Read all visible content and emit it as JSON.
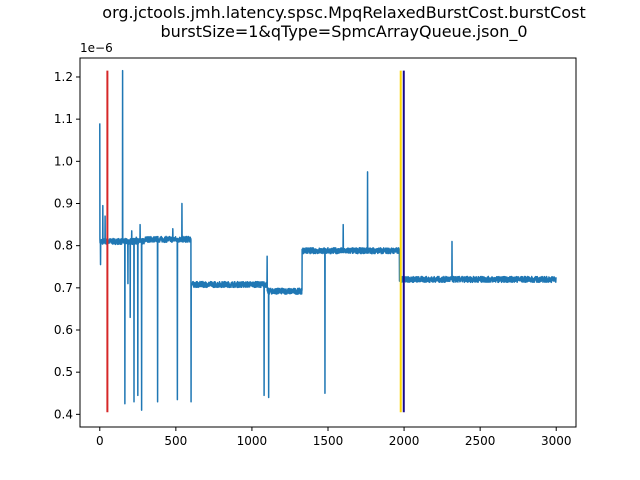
{
  "chart_data": {
    "type": "line",
    "title": "org.jctools.jmh.latency.spsc.MpqRelaxedBurstCost.burstCost",
    "subtitle": "burstSize=1&qType=SpmcArrayQueue.json_0",
    "xlabel": "",
    "ylabel": "",
    "y_offset_label": "1e−6",
    "xlim": [
      -130,
      3130
    ],
    "ylim": [
      3.7e-07,
      1.245e-06
    ],
    "x_ticks": [
      0,
      500,
      1000,
      1500,
      2000,
      2500,
      3000
    ],
    "x_tick_labels": [
      "0",
      "500",
      "1000",
      "1500",
      "2000",
      "2500",
      "3000"
    ],
    "y_ticks": [
      4e-07,
      5e-07,
      6e-07,
      7e-07,
      8e-07,
      9e-07,
      1e-06,
      1.1e-06,
      1.2e-06
    ],
    "y_tick_labels": [
      "0.4",
      "0.5",
      "0.6",
      "0.7",
      "0.8",
      "0.9",
      "1.0",
      "1.1",
      "1.2"
    ],
    "grid": false,
    "legend": "none",
    "series": [
      {
        "color": "#1f77b4",
        "segments": [
          {
            "x": [
              0,
              300
            ],
            "y": 8.1e-07
          },
          {
            "x": [
              300,
              600
            ],
            "y": 8.15e-07
          },
          {
            "x": [
              600,
              1100
            ],
            "y": 7.08e-07
          },
          {
            "x": [
              1100,
              1330
            ],
            "y": 6.92e-07
          },
          {
            "x": [
              1330,
              1970
            ],
            "y": 7.88e-07
          },
          {
            "x": [
              1970,
              3000
            ],
            "y": 7.2e-07
          }
        ],
        "spikes": [
          {
            "x": 0,
            "y": 1.09e-06
          },
          {
            "x": 5,
            "y": 7.55e-07
          },
          {
            "x": 20,
            "y": 8.95e-07
          },
          {
            "x": 35,
            "y": 8.7e-07
          },
          {
            "x": 150,
            "y": 1.215e-06
          },
          {
            "x": 165,
            "y": 4.25e-07
          },
          {
            "x": 185,
            "y": 7.1e-07
          },
          {
            "x": 200,
            "y": 6.3e-07
          },
          {
            "x": 210,
            "y": 8.35e-07
          },
          {
            "x": 225,
            "y": 4.3e-07
          },
          {
            "x": 240,
            "y": 8.2e-07
          },
          {
            "x": 250,
            "y": 4.45e-07
          },
          {
            "x": 265,
            "y": 8.5e-07
          },
          {
            "x": 275,
            "y": 4.1e-07
          },
          {
            "x": 380,
            "y": 4.3e-07
          },
          {
            "x": 480,
            "y": 8.4e-07
          },
          {
            "x": 510,
            "y": 4.35e-07
          },
          {
            "x": 540,
            "y": 9e-07
          },
          {
            "x": 600,
            "y": 4.3e-07
          },
          {
            "x": 1080,
            "y": 4.45e-07
          },
          {
            "x": 1100,
            "y": 7.75e-07
          },
          {
            "x": 1110,
            "y": 4.4e-07
          },
          {
            "x": 1480,
            "y": 4.5e-07
          },
          {
            "x": 1600,
            "y": 8.5e-07
          },
          {
            "x": 1760,
            "y": 9.75e-07
          },
          {
            "x": 2315,
            "y": 8.1e-07
          }
        ]
      }
    ],
    "vertical_lines": [
      {
        "x": 50,
        "color": "#d62728",
        "y_range": [
          4.05e-07,
          1.215e-06
        ]
      },
      {
        "x": 1978,
        "color": "#ffd700",
        "y_range": [
          4.05e-07,
          1.215e-06
        ]
      },
      {
        "x": 1998,
        "color": "#1a0a8c",
        "y_range": [
          4.05e-07,
          1.215e-06
        ]
      }
    ]
  }
}
